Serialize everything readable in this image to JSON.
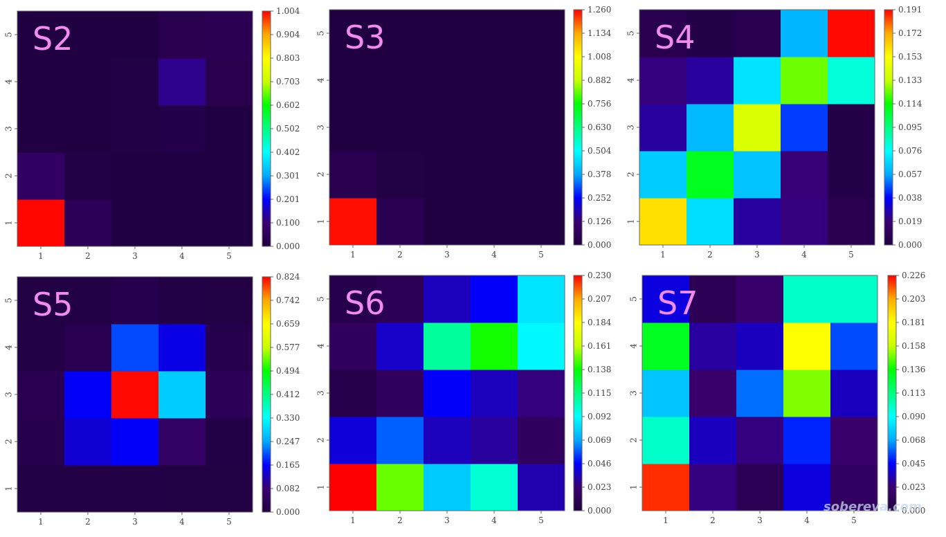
{
  "watermark": "sobereva.com",
  "colormap": [
    "#200040",
    "#3a0070",
    "#0000ff",
    "#00aaff",
    "#00ffff",
    "#00ff80",
    "#00ff00",
    "#c8ff00",
    "#ffff00",
    "#ffaa00",
    "#ff0000"
  ],
  "chart_data": [
    {
      "type": "heatmap",
      "label": "S2",
      "x_ticks": [
        "1",
        "2",
        "3",
        "4",
        "5"
      ],
      "y_ticks": [
        "1",
        "2",
        "3",
        "4",
        "5"
      ],
      "vmin": 0.0,
      "vmax": 1.004,
      "colorbar_ticks": [
        "0.000",
        "0.100",
        "0.201",
        "0.301",
        "0.402",
        "0.502",
        "0.602",
        "0.703",
        "0.803",
        "0.904",
        "1.004"
      ],
      "values": [
        [
          1.0,
          0.05,
          0.0,
          0.0,
          0.0
        ],
        [
          0.07,
          0.01,
          0.0,
          0.0,
          0.0
        ],
        [
          0.0,
          0.0,
          0.01,
          0.02,
          0.0
        ],
        [
          0.0,
          0.0,
          0.01,
          0.12,
          0.03
        ],
        [
          0.0,
          0.0,
          0.0,
          0.03,
          0.04
        ]
      ]
    },
    {
      "type": "heatmap",
      "label": "S3",
      "x_ticks": [
        "1",
        "2",
        "3",
        "4",
        "5"
      ],
      "y_ticks": [
        "1",
        "2",
        "3",
        "4",
        "5"
      ],
      "vmin": 0.0,
      "vmax": 1.26,
      "colorbar_ticks": [
        "0.000",
        "0.126",
        "0.252",
        "0.378",
        "0.504",
        "0.630",
        "0.756",
        "0.882",
        "1.008",
        "1.134",
        "1.260"
      ],
      "values": [
        [
          1.25,
          0.05,
          0.0,
          0.0,
          0.0
        ],
        [
          0.04,
          0.01,
          0.0,
          0.0,
          0.0
        ],
        [
          0.0,
          0.0,
          0.0,
          0.0,
          0.0
        ],
        [
          0.0,
          0.0,
          0.0,
          0.0,
          0.0
        ],
        [
          0.0,
          0.0,
          0.0,
          0.0,
          0.0
        ]
      ]
    },
    {
      "type": "heatmap",
      "label": "S4",
      "x_ticks": [
        "1",
        "2",
        "3",
        "4",
        "5"
      ],
      "y_ticks": [
        "1",
        "2",
        "3",
        "4",
        "5"
      ],
      "vmin": 0.0,
      "vmax": 0.191,
      "colorbar_ticks": [
        "0.000",
        "0.019",
        "0.038",
        "0.057",
        "0.076",
        "0.095",
        "0.114",
        "0.133",
        "0.153",
        "0.172",
        "0.191"
      ],
      "values": [
        [
          0.16,
          0.069,
          0.025,
          0.021,
          0.006
        ],
        [
          0.065,
          0.11,
          0.063,
          0.02,
          0.003
        ],
        [
          0.025,
          0.061,
          0.14,
          0.045,
          0.003
        ],
        [
          0.021,
          0.025,
          0.07,
          0.125,
          0.082
        ],
        [
          0.006,
          0.003,
          0.006,
          0.06,
          0.19
        ]
      ]
    },
    {
      "type": "heatmap",
      "label": "S5",
      "x_ticks": [
        "1",
        "2",
        "3",
        "4",
        "5"
      ],
      "y_ticks": [
        "1",
        "2",
        "3",
        "4",
        "5"
      ],
      "vmin": 0.0,
      "vmax": 0.824,
      "colorbar_ticks": [
        "0.000",
        "0.082",
        "0.165",
        "0.247",
        "0.330",
        "0.412",
        "0.494",
        "0.577",
        "0.659",
        "0.742",
        "0.824"
      ],
      "values": [
        [
          0.01,
          0.01,
          0.01,
          0.005,
          0.005
        ],
        [
          0.02,
          0.14,
          0.16,
          0.06,
          0.01
        ],
        [
          0.03,
          0.16,
          0.82,
          0.28,
          0.04
        ],
        [
          0.01,
          0.03,
          0.2,
          0.15,
          0.02
        ],
        [
          0.005,
          0.01,
          0.02,
          0.01,
          0.005
        ]
      ]
    },
    {
      "type": "heatmap",
      "label": "S6",
      "x_ticks": [
        "1",
        "2",
        "3",
        "4",
        "5"
      ],
      "y_ticks": [
        "1",
        "2",
        "3",
        "4",
        "5"
      ],
      "vmin": 0.0,
      "vmax": 0.23,
      "colorbar_ticks": [
        "0.000",
        "0.023",
        "0.046",
        "0.069",
        "0.092",
        "0.115",
        "0.138",
        "0.161",
        "0.184",
        "0.207",
        "0.230"
      ],
      "values": [
        [
          0.23,
          0.15,
          0.078,
          0.1,
          0.033
        ],
        [
          0.04,
          0.059,
          0.035,
          0.03,
          0.015
        ],
        [
          0.005,
          0.015,
          0.045,
          0.035,
          0.025
        ],
        [
          0.015,
          0.037,
          0.11,
          0.14,
          0.09
        ],
        [
          0.005,
          0.01,
          0.035,
          0.045,
          0.085
        ]
      ]
    },
    {
      "type": "heatmap",
      "label": "S7",
      "x_ticks": [
        "1",
        "2",
        "3",
        "4",
        "5"
      ],
      "y_ticks": [
        "1",
        "2",
        "3",
        "4",
        "5"
      ],
      "vmin": 0.0,
      "vmax": 0.226,
      "colorbar_ticks": [
        "0.000",
        "0.023",
        "0.045",
        "0.068",
        "0.090",
        "0.113",
        "0.136",
        "0.158",
        "0.181",
        "0.203",
        "0.226"
      ],
      "values": [
        [
          0.22,
          0.025,
          0.01,
          0.04,
          0.015
        ],
        [
          0.1,
          0.035,
          0.025,
          0.05,
          0.02
        ],
        [
          0.075,
          0.02,
          0.06,
          0.15,
          0.035
        ],
        [
          0.13,
          0.03,
          0.035,
          0.18,
          0.055
        ],
        [
          0.04,
          0.01,
          0.02,
          0.1,
          0.1
        ]
      ]
    }
  ]
}
